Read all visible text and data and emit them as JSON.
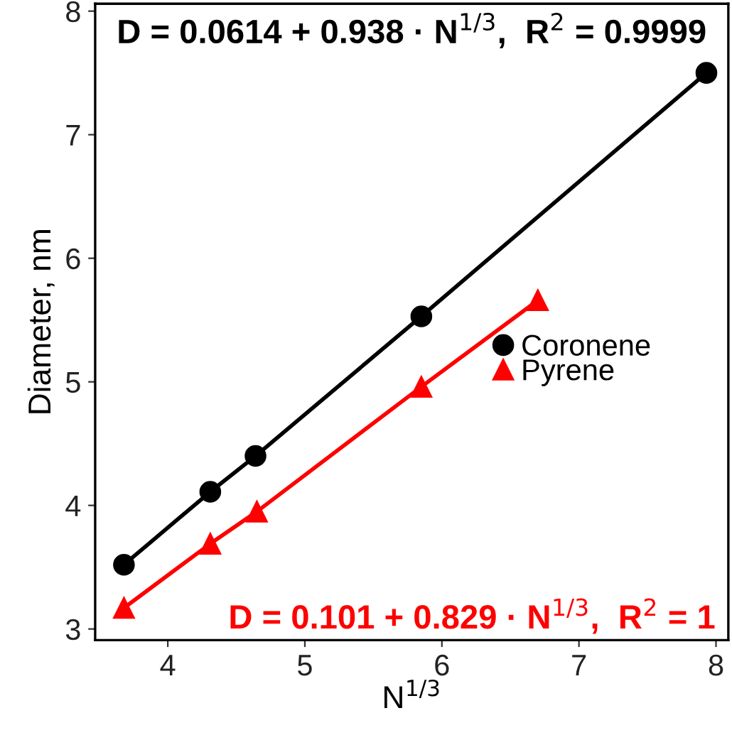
{
  "chart_data": {
    "type": "line",
    "xlabel": "N$^{1/3}$",
    "ylabel": "Diameter, nm",
    "xlim": [
      3.47,
      8.09
    ],
    "xticks": [
      4,
      5,
      6,
      7,
      8
    ],
    "ylim": [
      2.91,
      8.06
    ],
    "yticks": [
      3,
      4,
      5,
      6,
      7,
      8
    ],
    "grid": false,
    "legend": "right",
    "line_style": "solid",
    "series": [
      {
        "name": "Coronene",
        "color": "#000000",
        "marker": "circle",
        "x": [
          3.68,
          4.31,
          4.64,
          5.85,
          7.93
        ],
        "values": [
          3.52,
          4.11,
          4.4,
          5.53,
          7.5
        ]
      },
      {
        "name": "Pyrene",
        "color": "#ff0000",
        "marker": "triangle",
        "x": [
          3.68,
          4.31,
          4.65,
          5.85,
          6.7
        ],
        "values": [
          3.17,
          3.69,
          3.95,
          4.96,
          5.66
        ]
      }
    ],
    "annotations": [
      "D = 0.0614 + 0.938 · N$^{1/3}$,  R$^{2}$ = 0.9999",
      "D = 0.101 + 0.829 · N$^{1/3}$,  R$^{2}$ = 1"
    ]
  }
}
